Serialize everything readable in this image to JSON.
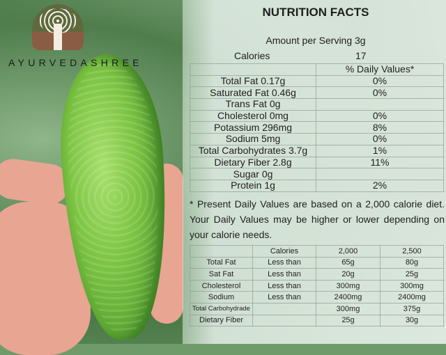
{
  "brand": {
    "name": "AYURVEDASHREE"
  },
  "title": "NUTRITION FACTS",
  "amount": "Amount per Serving  3g",
  "calories": {
    "label": "Calories",
    "value": "17"
  },
  "daily_header": "% Daily Values*",
  "nutrients": [
    {
      "label": "Total Fat 0.17g",
      "dv": "0%"
    },
    {
      "label": "Saturated Fat 0.46g",
      "dv": "0%"
    },
    {
      "label": "Trans Fat 0g",
      "dv": ""
    },
    {
      "label": "Cholesterol 0mg",
      "dv": "0%"
    },
    {
      "label": "Potassium 296mg",
      "dv": "8%"
    },
    {
      "label": "Sodium 5mg",
      "dv": "0%"
    },
    {
      "label": "Total Carbohydrates 3.7g",
      "dv": "1%"
    },
    {
      "label": "Dietary Fiber 2.8g",
      "dv": "11%"
    },
    {
      "label": "Sugar 0g",
      "dv": ""
    },
    {
      "label": "Protein 1g",
      "dv": "2%"
    }
  ],
  "footnote": "* Present Daily Values are based on a 2,000 calorie diet. Your Daily Values may be higher or lower depending on your calorie needs.",
  "reference": [
    [
      "",
      "Calories",
      "2,000",
      "2,500"
    ],
    [
      "Total Fat",
      "Less than",
      "65g",
      "80g"
    ],
    [
      "Sat Fat",
      "Less than",
      "20g",
      "25g"
    ],
    [
      "Cholesterol",
      "Less than",
      "300mg",
      "300mg"
    ],
    [
      "Sodium",
      "Less than",
      "2400mg",
      "2400mg"
    ],
    [
      "Total Carbohydrade",
      "",
      "300mg",
      "375g"
    ],
    [
      "Dietary Fiber",
      "",
      "25g",
      "30g"
    ]
  ]
}
